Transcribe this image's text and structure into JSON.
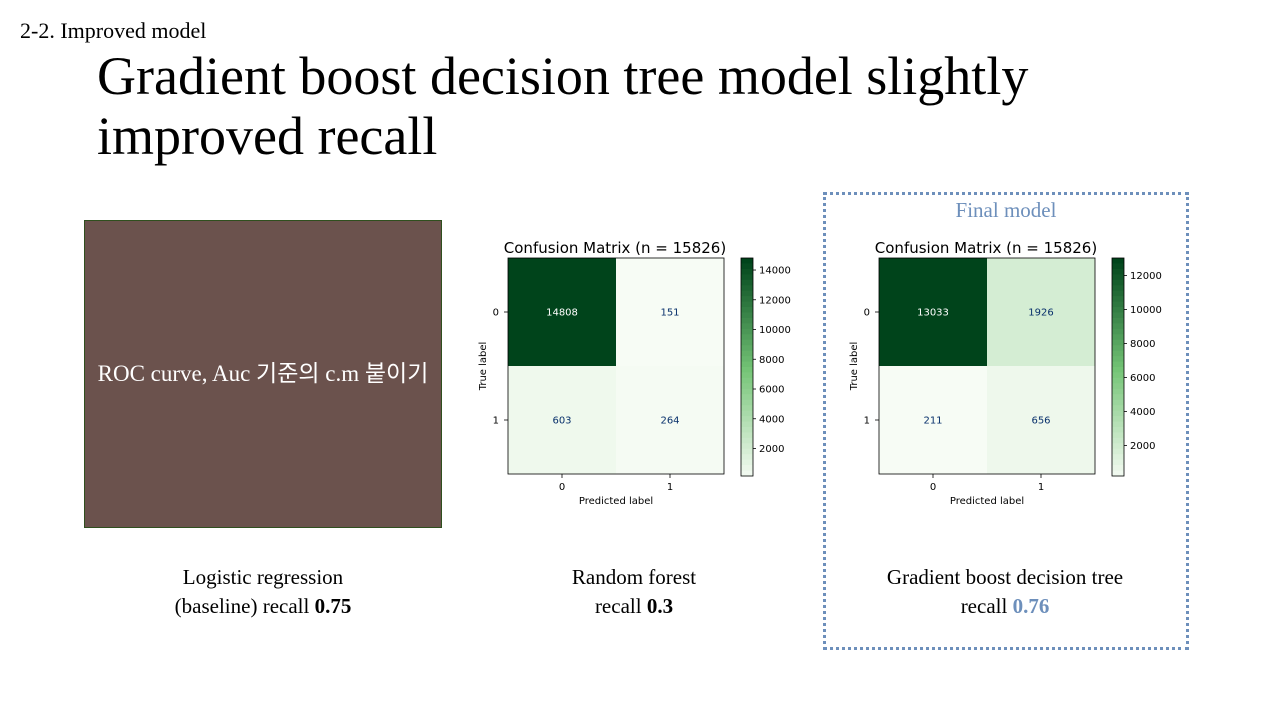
{
  "section_label": "2-2. Improved model",
  "title": "Gradient boost decision tree model slightly improved recall",
  "placeholder_text": "ROC curve, Auc 기준의 c.m 붙이기",
  "final_label": "Final model",
  "colors": {
    "accent": "#6d8fbb",
    "placeholder_bg": "#6b524d",
    "cmap_low": "#f7fcf5",
    "cmap_high": "#00441b"
  },
  "captions": [
    {
      "line1": "Logistic regression",
      "line2_text": "(baseline) recall ",
      "value": "0.75",
      "highlight": false
    },
    {
      "line1": "Random forest",
      "line2_text": "recall ",
      "value": "0.3",
      "highlight": false
    },
    {
      "line1": "Gradient boost decision tree",
      "line2_text": "recall ",
      "value": "0.76",
      "highlight": true
    }
  ],
  "chart_data": [
    {
      "type": "heatmap",
      "title": "Confusion Matrix (n = 15826)",
      "xlabel": "Predicted label",
      "ylabel": "True label",
      "x_categories": [
        "0",
        "1"
      ],
      "y_categories": [
        "0",
        "1"
      ],
      "values": [
        [
          14808,
          151
        ],
        [
          603,
          264
        ]
      ],
      "colorbar_ticks": [
        2000,
        4000,
        6000,
        8000,
        10000,
        12000,
        14000
      ],
      "colormap": "Greens"
    },
    {
      "type": "heatmap",
      "title": "Confusion Matrix (n = 15826)",
      "xlabel": "Predicted label",
      "ylabel": "True label",
      "x_categories": [
        "0",
        "1"
      ],
      "y_categories": [
        "0",
        "1"
      ],
      "values": [
        [
          13033,
          1926
        ],
        [
          211,
          656
        ]
      ],
      "colorbar_ticks": [
        2000,
        4000,
        6000,
        8000,
        10000,
        12000
      ],
      "colormap": "Greens"
    }
  ]
}
